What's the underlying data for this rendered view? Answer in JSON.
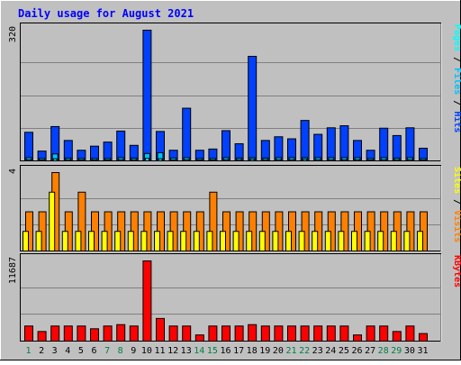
{
  "chart_data": {
    "type": "bar",
    "title": "Daily usage for August 2021",
    "days": [
      "1",
      "2",
      "3",
      "4",
      "5",
      "6",
      "7",
      "8",
      "9",
      "10",
      "11",
      "12",
      "13",
      "14",
      "15",
      "16",
      "17",
      "18",
      "19",
      "20",
      "21",
      "22",
      "23",
      "24",
      "25",
      "26",
      "27",
      "28",
      "29",
      "30",
      "31"
    ],
    "weekend_days": [
      "1",
      "7",
      "8",
      "14",
      "15",
      "21",
      "22",
      "28",
      "29"
    ],
    "panels": [
      {
        "id": "hits-files-pages",
        "ymax": 320,
        "ymax_label": "320",
        "legend": [
          "Pages",
          "Files",
          "Hits"
        ],
        "series": [
          {
            "name": "Hits",
            "color": "#0040ff",
            "values": [
              70,
              24,
              84,
              50,
              26,
              36,
              46,
              73,
              38,
              320,
              72,
              26,
              129,
              26,
              29,
              74,
              42,
              256,
              50,
              59,
              54,
              99,
              65,
              81,
              86,
              50,
              26,
              80,
              62,
              81,
              31
            ]
          },
          {
            "name": "Files",
            "color": "#00c0ff",
            "values": [
              8,
              6,
              17,
              7,
              6,
              6,
              6,
              8,
              7,
              18,
              20,
              7,
              8,
              6,
              6,
              8,
              7,
              8,
              7,
              8,
              8,
              8,
              8,
              8,
              8,
              8,
              6,
              8,
              7,
              8,
              6
            ]
          },
          {
            "name": "Pages",
            "color": "#00ffff",
            "values": [
              3,
              2,
              5,
              3,
              2,
              2,
              2,
              3,
              3,
              6,
              5,
              2,
              3,
              2,
              2,
              3,
              3,
              4,
              3,
              3,
              3,
              4,
              3,
              3,
              3,
              3,
              2,
              3,
              3,
              3,
              2
            ]
          }
        ]
      },
      {
        "id": "visits-sites",
        "ymax": 4,
        "ymax_label": "4",
        "legend": [
          "Sites",
          "Visits"
        ],
        "series": [
          {
            "name": "Visits",
            "color": "#ff8000",
            "values": [
              2,
              2,
              4,
              2,
              3,
              2,
              2,
              2,
              2,
              2,
              2,
              2,
              2,
              2,
              3,
              2,
              2,
              2,
              2,
              2,
              2,
              2,
              2,
              2,
              2,
              2,
              2,
              2,
              2,
              2,
              2
            ]
          },
          {
            "name": "Sites",
            "color": "#ffff00",
            "values": [
              1,
              1,
              3,
              1,
              1,
              1,
              1,
              1,
              1,
              1,
              1,
              1,
              1,
              1,
              1,
              1,
              1,
              1,
              1,
              1,
              1,
              1,
              1,
              1,
              1,
              1,
              1,
              1,
              1,
              1,
              1
            ]
          }
        ]
      },
      {
        "id": "kbytes",
        "ymax": 11687,
        "ymax_label": "11687",
        "legend": [
          "KBytes"
        ],
        "series": [
          {
            "name": "KBytes",
            "color": "#ff0000",
            "values": [
              2200,
              1400,
              2200,
              2200,
              2200,
              1800,
              2200,
              2400,
              2200,
              11687,
              3300,
              2200,
              2200,
              900,
              2200,
              2200,
              2200,
              2400,
              2200,
              2200,
              2200,
              2200,
              2200,
              2200,
              2200,
              900,
              2200,
              2200,
              1400,
              2200,
              1100
            ]
          }
        ]
      }
    ],
    "colors": {
      "background": "#c0c0c0",
      "gridline": "#808080",
      "title": "#0000ff",
      "weekday_label": "#000000",
      "weekend_label": "#008040",
      "legend_separator": "#000000"
    }
  }
}
